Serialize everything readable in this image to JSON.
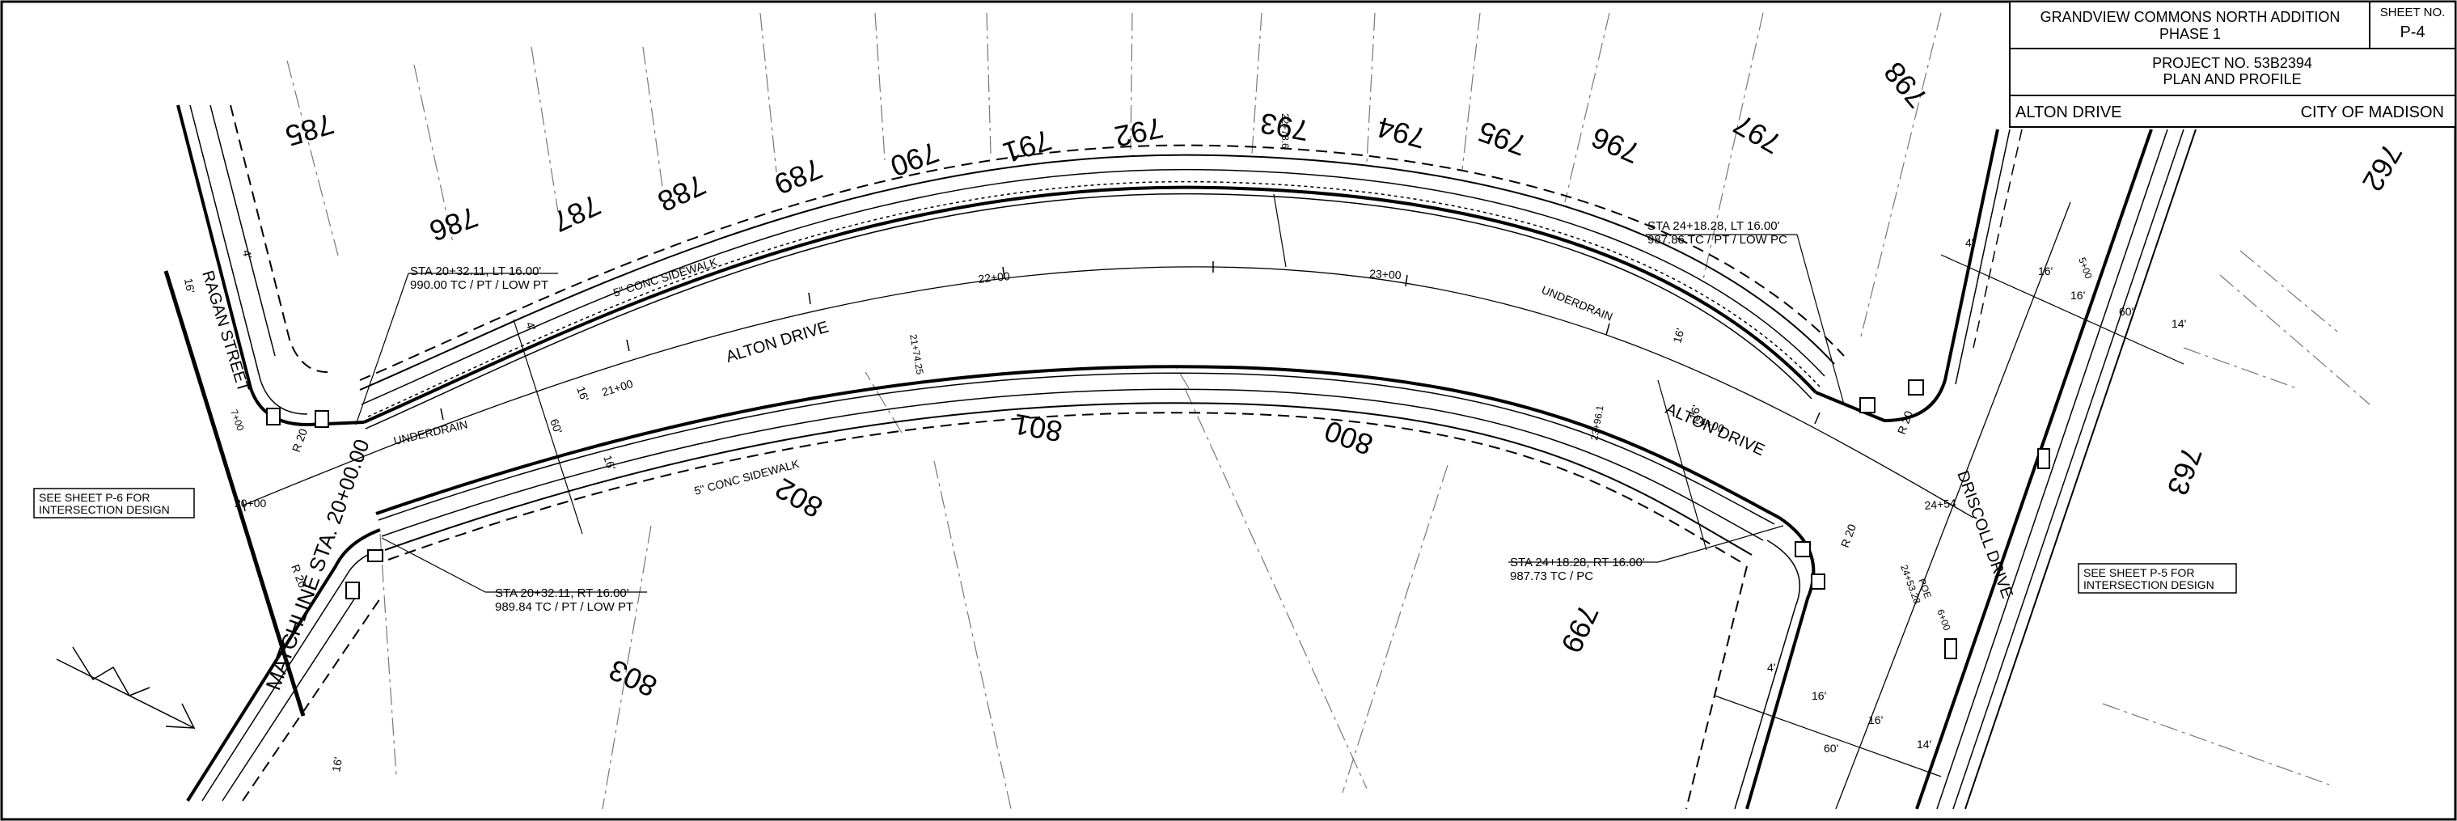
{
  "title_block": {
    "project_name_line1": "GRANDVIEW COMMONS NORTH ADDITION",
    "project_name_line2": "PHASE 1",
    "sheet_no_label": "SHEET NO.",
    "sheet_no": "P-4",
    "project_no": "PROJECT NO. 53B2394",
    "sheet_type": "PLAN AND PROFILE",
    "street": "ALTON DRIVE",
    "city": "CITY OF MADISON"
  },
  "streets": {
    "ragan": "RAGAN STREET",
    "alton": "ALTON DRIVE",
    "alton_east": "ALTON DRIVE",
    "driscoll": "DRISCOLL DRIVE",
    "matchline": "MATCHLINE STA. 20+00.00"
  },
  "sidewalks": {
    "north": "5\" CONC SIDEWALK",
    "south": "5\" CONC SIDEWALK"
  },
  "underdrain": {
    "west": "UNDERDRAIN",
    "east": "UNDERDRAIN"
  },
  "lots_north": [
    "785",
    "786",
    "787",
    "788",
    "789",
    "790",
    "791",
    "792",
    "793",
    "794",
    "795",
    "796",
    "797",
    "798"
  ],
  "lots_south": [
    "801",
    "802",
    "803",
    "799",
    "800"
  ],
  "lot_east": [
    "763",
    "762"
  ],
  "stations": {
    "s2000": "20+00",
    "s2100": "21+00",
    "s2200": "22+00",
    "s2300": "23+00",
    "s2400": "24+00",
    "s2454": "24+54",
    "pc_2174": "21+74.25",
    "pt_2278": "22+78.6",
    "pc_2396": "23+96.1",
    "poe": "24+53.28",
    "poe_label": "POE",
    "driscoll_sta": "6+00",
    "driscoll_sta2": "5+00",
    "ragan_sta": "7+00"
  },
  "callouts": {
    "nw_line1": "STA 20+32.11, LT 16.00'",
    "nw_line2": "990.00 TC / PT / LOW PT",
    "sw_line1": "STA 20+32.11, RT 16.00'",
    "sw_line2": "989.84 TC / PT / LOW PT",
    "ne_line1": "STA 24+18.28, LT 16.00'",
    "ne_line2": "987.86 TC / PT / LOW PC",
    "se_line1": "STA 24+18.28, RT 16.00'",
    "se_line2": "987.73 TC / PC"
  },
  "notes": {
    "west_line1": "SEE SHEET P-6 FOR",
    "west_line2": "INTERSECTION DESIGN",
    "east_line1": "SEE SHEET P-5 FOR",
    "east_line2": "INTERSECTION DESIGN"
  },
  "dimensions": {
    "row": "60'",
    "half16": "16'",
    "four": "4'",
    "fourteen": "14'",
    "radius": "R 20"
  }
}
